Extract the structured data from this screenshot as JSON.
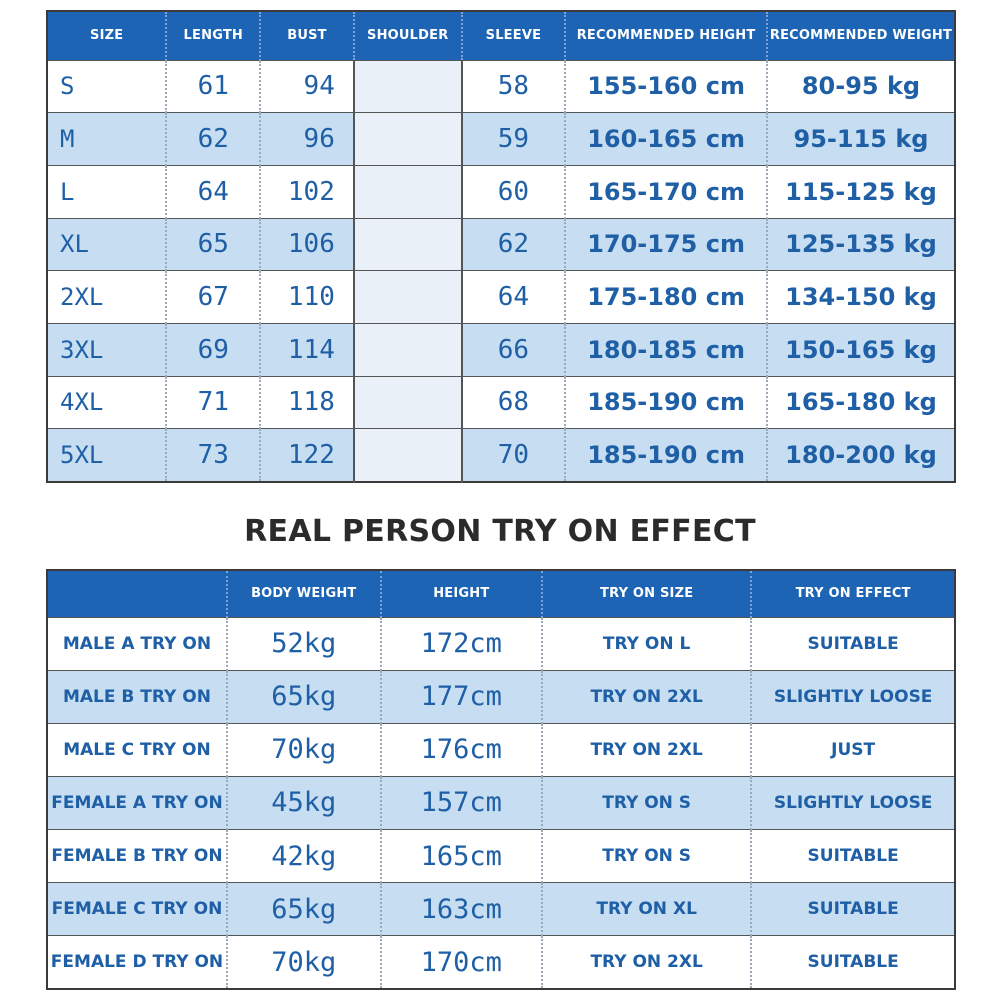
{
  "size_chart": {
    "headers": [
      "SIZE",
      "LENGTH",
      "BUST",
      "SHOULDER",
      "SLEEVE",
      "RECOMMENDED HEIGHT",
      "RECOMMENDED WEIGHT"
    ],
    "rows": [
      {
        "size": "S",
        "length": "61",
        "bust": "94",
        "shoulder": "",
        "sleeve": "58",
        "height": "155-160 cm",
        "weight": "80-95 kg"
      },
      {
        "size": "M",
        "length": "62",
        "bust": "96",
        "shoulder": "",
        "sleeve": "59",
        "height": "160-165 cm",
        "weight": "95-115 kg"
      },
      {
        "size": "L",
        "length": "64",
        "bust": "102",
        "shoulder": "",
        "sleeve": "60",
        "height": "165-170 cm",
        "weight": "115-125 kg"
      },
      {
        "size": "XL",
        "length": "65",
        "bust": "106",
        "shoulder": "",
        "sleeve": "62",
        "height": "170-175 cm",
        "weight": "125-135 kg"
      },
      {
        "size": "2XL",
        "length": "67",
        "bust": "110",
        "shoulder": "",
        "sleeve": "64",
        "height": "175-180 cm",
        "weight": "134-150 kg"
      },
      {
        "size": "3XL",
        "length": "69",
        "bust": "114",
        "shoulder": "",
        "sleeve": "66",
        "height": "180-185 cm",
        "weight": "150-165 kg"
      },
      {
        "size": "4XL",
        "length": "71",
        "bust": "118",
        "shoulder": "",
        "sleeve": "68",
        "height": "185-190 cm",
        "weight": "165-180 kg"
      },
      {
        "size": "5XL",
        "length": "73",
        "bust": "122",
        "shoulder": "",
        "sleeve": "70",
        "height": "185-190 cm",
        "weight": "180-200 kg"
      }
    ]
  },
  "try_on": {
    "title": "REAL PERSON TRY ON EFFECT",
    "headers": [
      "",
      "BODY WEIGHT",
      "HEIGHT",
      "TRY ON SIZE",
      "TRY ON EFFECT"
    ],
    "rows": [
      {
        "name": "MALE A TRY ON",
        "weight": "52kg",
        "height": "172cm",
        "size": "TRY ON L",
        "effect": "SUITABLE"
      },
      {
        "name": "MALE B TRY ON",
        "weight": "65kg",
        "height": "177cm",
        "size": "TRY ON 2XL",
        "effect": "SLIGHTLY LOOSE"
      },
      {
        "name": "MALE C TRY ON",
        "weight": "70kg",
        "height": "176cm",
        "size": "TRY ON 2XL",
        "effect": "JUST"
      },
      {
        "name": "FEMALE A TRY ON",
        "weight": "45kg",
        "height": "157cm",
        "size": "TRY ON S",
        "effect": "SLIGHTLY LOOSE"
      },
      {
        "name": "FEMALE B TRY ON",
        "weight": "42kg",
        "height": "165cm",
        "size": "TRY ON S",
        "effect": "SUITABLE"
      },
      {
        "name": "FEMALE C TRY ON",
        "weight": "65kg",
        "height": "163cm",
        "size": "TRY ON XL",
        "effect": "SUITABLE"
      },
      {
        "name": "FEMALE D TRY ON",
        "weight": "70kg",
        "height": "170cm",
        "size": "TRY ON 2XL",
        "effect": "SUITABLE"
      }
    ]
  },
  "colors": {
    "header_blue": "#1d64b4",
    "row_alt": "#c6ddf2",
    "text_blue": "#1f5fa6",
    "title": "#2b2b2b"
  }
}
